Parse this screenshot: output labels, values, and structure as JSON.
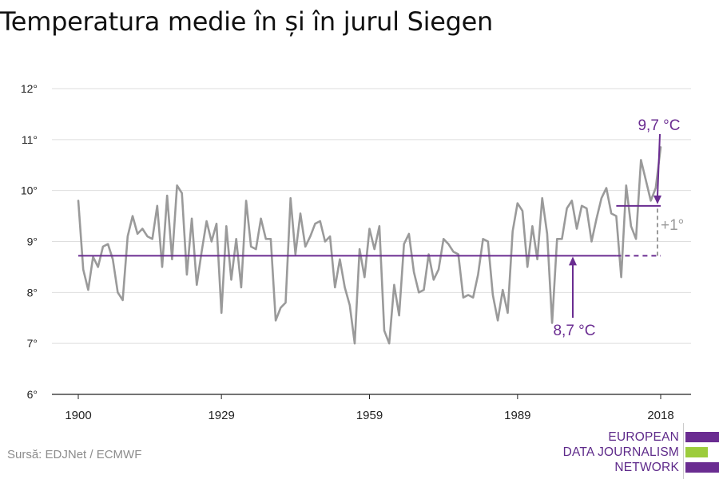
{
  "title": "Temperatura medie în și în jurul Siegen",
  "source": "Sursă: EDJNet / ECMWF",
  "logo": {
    "lines": [
      "EUROPEAN",
      "DATA JOURNALISM",
      "NETWORK"
    ],
    "colors": {
      "purple": "#6a2c91",
      "green": "#9ccc3c"
    }
  },
  "colors": {
    "series": "#9a9a9a",
    "average": "#6a2c91",
    "grid": "#dedede",
    "axis": "#222222"
  },
  "annotations": {
    "old_avg_label": "8,7 °C",
    "new_avg_label": "9,7 °C",
    "diff_label": "+1°"
  },
  "chart_data": {
    "type": "line",
    "title": "Temperatura medie în și în jurul Siegen",
    "xlabel": "",
    "ylabel": "",
    "xlim": [
      1900,
      2018
    ],
    "ylim": [
      6,
      12
    ],
    "grid": true,
    "x_ticks": [
      1900,
      1929,
      1959,
      1989,
      2018
    ],
    "x_tick_labels": [
      "1900",
      "1929",
      "1959",
      "1989",
      "2018"
    ],
    "y_ticks": [
      6,
      7,
      8,
      9,
      10,
      11,
      12
    ],
    "y_tick_labels": [
      "6°",
      "7°",
      "8°",
      "9°",
      "10°",
      "11°",
      "12°"
    ],
    "series": [
      {
        "role": "annual-mean",
        "x": [
          1900,
          1901,
          1902,
          1903,
          1904,
          1905,
          1906,
          1907,
          1908,
          1909,
          1910,
          1911,
          1912,
          1913,
          1914,
          1915,
          1916,
          1917,
          1918,
          1919,
          1920,
          1921,
          1922,
          1923,
          1924,
          1925,
          1926,
          1927,
          1928,
          1929,
          1930,
          1931,
          1932,
          1933,
          1934,
          1935,
          1936,
          1937,
          1938,
          1939,
          1940,
          1941,
          1942,
          1943,
          1944,
          1945,
          1946,
          1947,
          1948,
          1949,
          1950,
          1951,
          1952,
          1953,
          1954,
          1955,
          1956,
          1957,
          1958,
          1959,
          1960,
          1961,
          1962,
          1963,
          1964,
          1965,
          1966,
          1967,
          1968,
          1969,
          1970,
          1971,
          1972,
          1973,
          1974,
          1975,
          1976,
          1977,
          1978,
          1979,
          1980,
          1981,
          1982,
          1983,
          1984,
          1985,
          1986,
          1987,
          1988,
          1989,
          1990,
          1991,
          1992,
          1993,
          1994,
          1995,
          1996,
          1997,
          1998,
          1999,
          2000,
          2001,
          2002,
          2003,
          2004,
          2005,
          2006,
          2007,
          2008,
          2009,
          2010,
          2011,
          2012,
          2013,
          2014,
          2015,
          2016,
          2017,
          2018
        ],
        "values": [
          9.8,
          8.45,
          8.05,
          8.7,
          8.5,
          8.9,
          8.95,
          8.65,
          8.0,
          7.85,
          9.1,
          9.5,
          9.15,
          9.25,
          9.1,
          9.05,
          9.7,
          8.5,
          9.9,
          8.65,
          10.1,
          9.95,
          8.35,
          9.45,
          8.15,
          8.8,
          9.4,
          9.0,
          9.35,
          7.6,
          9.3,
          8.25,
          9.05,
          8.1,
          9.8,
          8.9,
          8.85,
          9.45,
          9.05,
          9.05,
          7.45,
          7.7,
          7.8,
          9.85,
          8.75,
          9.55,
          8.9,
          9.1,
          9.35,
          9.4,
          9.0,
          9.1,
          8.1,
          8.65,
          8.1,
          7.75,
          7.0,
          8.85,
          8.3,
          9.25,
          8.85,
          9.3,
          7.25,
          7.0,
          8.15,
          7.55,
          8.95,
          9.15,
          8.4,
          8.0,
          8.05,
          8.75,
          8.25,
          8.45,
          9.05,
          8.95,
          8.8,
          8.75,
          7.9,
          7.95,
          7.9,
          8.35,
          9.05,
          9.0,
          7.95,
          7.45,
          8.05,
          7.6,
          9.2,
          9.75,
          9.6,
          8.5,
          9.3,
          8.65,
          9.85,
          9.15,
          7.4,
          9.05,
          9.05,
          9.65,
          9.8,
          9.25,
          9.7,
          9.65,
          9.0,
          9.45,
          9.85,
          10.05,
          9.55,
          9.5,
          8.3,
          10.1,
          9.3,
          9.05,
          10.6,
          10.2,
          9.8,
          10.05,
          10.85
        ]
      }
    ],
    "average_lines": [
      {
        "label": "8,7 °C",
        "value": 8.72,
        "x_start": 1900,
        "x_end": 2009,
        "dashed_until": 2018
      },
      {
        "label": "9,7 °C",
        "value": 9.7,
        "x_start": 2009,
        "x_end": 2018
      }
    ],
    "difference": {
      "label": "+1°",
      "x": 2018,
      "from": 8.72,
      "to": 9.7
    }
  }
}
